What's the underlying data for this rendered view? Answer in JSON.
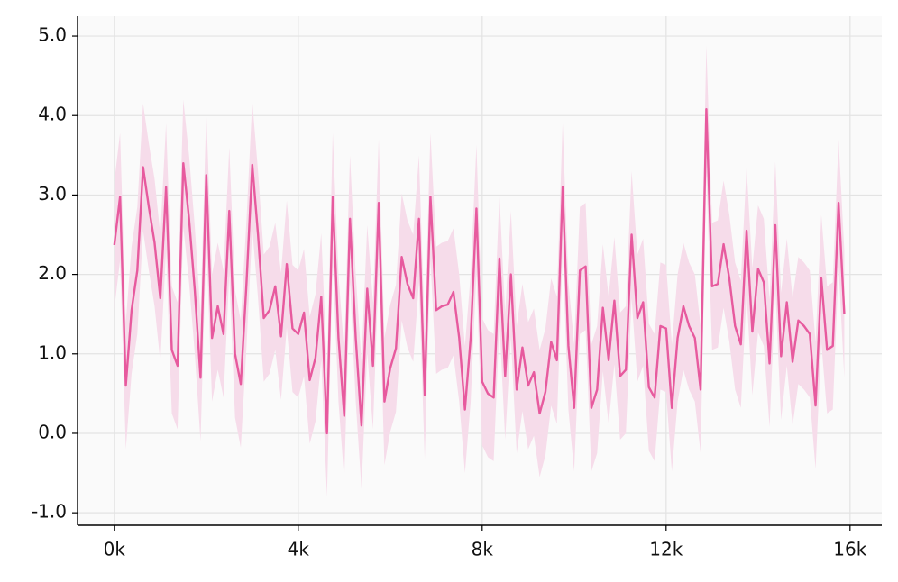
{
  "chart_data": {
    "type": "line",
    "x": [
      0,
      125,
      250,
      375,
      500,
      625,
      750,
      875,
      1000,
      1125,
      1250,
      1375,
      1500,
      1625,
      1750,
      1875,
      2000,
      2125,
      2250,
      2375,
      2500,
      2625,
      2750,
      2875,
      3000,
      3125,
      3250,
      3375,
      3500,
      3625,
      3750,
      3875,
      4000,
      4125,
      4250,
      4375,
      4500,
      4625,
      4750,
      4875,
      5000,
      5125,
      5250,
      5375,
      5500,
      5625,
      5750,
      5875,
      6000,
      6125,
      6250,
      6375,
      6500,
      6625,
      6750,
      6875,
      7000,
      7125,
      7250,
      7375,
      7500,
      7625,
      7750,
      7875,
      8000,
      8125,
      8250,
      8375,
      8500,
      8625,
      8750,
      8875,
      9000,
      9125,
      9250,
      9375,
      9500,
      9625,
      9750,
      9875,
      10000,
      10125,
      10250,
      10375,
      10500,
      10625,
      10750,
      10875,
      11000,
      11125,
      11250,
      11375,
      11500,
      11625,
      11750,
      11875,
      12000,
      12125,
      12250,
      12375,
      12500,
      12625,
      12750,
      12875,
      13000,
      13125,
      13250,
      13375,
      13500,
      13625,
      13750,
      13875,
      14000,
      14125,
      14250,
      14375,
      14500,
      14625,
      14750,
      14875,
      15000,
      15125,
      15250,
      15375,
      15500,
      15625,
      15750,
      15875
    ],
    "values": [
      2.37,
      2.98,
      0.6,
      1.55,
      2.05,
      3.35,
      2.85,
      2.4,
      1.7,
      3.1,
      1.05,
      0.85,
      3.4,
      2.7,
      1.8,
      0.7,
      3.25,
      1.2,
      1.6,
      1.25,
      2.8,
      1.0,
      0.62,
      1.9,
      3.38,
      2.5,
      1.45,
      1.55,
      1.85,
      1.22,
      2.13,
      1.32,
      1.25,
      1.52,
      0.67,
      0.95,
      1.72,
      0.0,
      2.98,
      1.2,
      0.22,
      2.7,
      1.2,
      0.1,
      1.82,
      0.85,
      2.9,
      0.4,
      0.82,
      1.07,
      2.22,
      1.88,
      1.7,
      2.7,
      0.48,
      2.98,
      1.55,
      1.6,
      1.62,
      1.78,
      1.2,
      0.3,
      1.2,
      2.83,
      0.65,
      0.5,
      0.45,
      2.2,
      0.72,
      2.0,
      0.55,
      1.08,
      0.6,
      0.77,
      0.25,
      0.52,
      1.15,
      0.92,
      3.1,
      1.1,
      0.32,
      2.05,
      2.1,
      0.32,
      0.55,
      1.58,
      0.92,
      1.67,
      0.72,
      0.8,
      2.5,
      1.45,
      1.65,
      0.58,
      0.45,
      1.35,
      1.32,
      0.32,
      1.2,
      1.6,
      1.35,
      1.2,
      0.55,
      4.08,
      1.85,
      1.88,
      2.38,
      1.95,
      1.35,
      1.12,
      2.55,
      1.28,
      2.07,
      1.9,
      0.88,
      2.62,
      0.97,
      1.65,
      0.9,
      1.42,
      1.35,
      1.25,
      0.35,
      1.95,
      1.05,
      1.1,
      2.9,
      1.5
    ],
    "upper": [
      3.17,
      3.78,
      1.4,
      2.35,
      2.85,
      4.15,
      3.65,
      3.2,
      2.5,
      3.9,
      1.85,
      1.65,
      4.2,
      3.5,
      2.6,
      1.5,
      4.05,
      2.0,
      2.4,
      2.05,
      3.6,
      1.8,
      1.42,
      2.7,
      4.18,
      3.3,
      2.25,
      2.35,
      2.65,
      2.02,
      2.93,
      2.12,
      2.05,
      2.32,
      1.47,
      1.75,
      2.52,
      0.8,
      3.78,
      2.0,
      1.02,
      3.5,
      2.0,
      0.9,
      2.62,
      1.65,
      3.7,
      1.2,
      1.62,
      1.87,
      3.02,
      2.68,
      2.5,
      3.5,
      1.28,
      3.78,
      2.35,
      2.4,
      2.42,
      2.58,
      2.0,
      1.1,
      2.0,
      3.63,
      1.45,
      1.3,
      1.25,
      3.0,
      1.52,
      2.8,
      1.35,
      1.88,
      1.4,
      1.57,
      1.05,
      1.32,
      1.95,
      1.72,
      3.9,
      1.9,
      1.12,
      2.85,
      2.9,
      1.12,
      1.35,
      2.38,
      1.72,
      2.47,
      1.52,
      1.6,
      3.3,
      2.25,
      2.45,
      1.38,
      1.25,
      2.15,
      2.12,
      1.12,
      2.0,
      2.4,
      2.15,
      2.0,
      1.35,
      4.88,
      2.65,
      2.68,
      3.18,
      2.75,
      2.15,
      1.92,
      3.35,
      2.08,
      2.87,
      2.7,
      1.68,
      3.42,
      1.77,
      2.45,
      1.7,
      2.22,
      2.15,
      2.05,
      1.15,
      2.75,
      1.85,
      1.9,
      3.7,
      2.3
    ],
    "lower": [
      1.57,
      2.18,
      -0.2,
      0.75,
      1.25,
      2.55,
      2.05,
      1.6,
      0.9,
      2.3,
      0.25,
      0.05,
      2.6,
      1.9,
      1.0,
      -0.1,
      2.45,
      0.4,
      0.8,
      0.45,
      2.0,
      0.2,
      -0.18,
      1.1,
      2.58,
      1.7,
      0.65,
      0.75,
      1.05,
      0.42,
      1.33,
      0.52,
      0.45,
      0.72,
      -0.13,
      0.15,
      0.92,
      -0.8,
      2.18,
      0.4,
      -0.58,
      1.9,
      0.4,
      -0.7,
      1.02,
      0.05,
      2.1,
      -0.4,
      0.02,
      0.27,
      1.42,
      1.08,
      0.9,
      1.9,
      -0.32,
      2.18,
      0.75,
      0.8,
      0.82,
      0.98,
      0.4,
      -0.5,
      0.4,
      2.03,
      -0.15,
      -0.3,
      -0.35,
      1.4,
      -0.08,
      1.2,
      -0.25,
      0.28,
      -0.2,
      -0.03,
      -0.55,
      -0.28,
      0.35,
      0.12,
      2.3,
      0.3,
      -0.48,
      1.25,
      1.3,
      -0.48,
      -0.25,
      0.78,
      0.12,
      0.87,
      -0.08,
      0.0,
      1.7,
      0.65,
      0.85,
      -0.22,
      -0.35,
      0.55,
      0.52,
      -0.48,
      0.4,
      0.8,
      0.55,
      0.4,
      -0.25,
      3.28,
      1.05,
      1.08,
      1.58,
      1.15,
      0.55,
      0.32,
      1.75,
      0.48,
      1.27,
      1.1,
      0.08,
      1.82,
      0.17,
      0.85,
      0.1,
      0.62,
      0.55,
      0.45,
      -0.45,
      1.15,
      0.25,
      0.3,
      2.1,
      0.7
    ],
    "color": "#e75a9e",
    "band_color": "#f6dcea",
    "xlim": [
      -800,
      16690
    ],
    "ylim": [
      -1.157,
      5.25
    ],
    "xticks": [
      {
        "value": 0,
        "label": "0k"
      },
      {
        "value": 4000,
        "label": "4k"
      },
      {
        "value": 8000,
        "label": "8k"
      },
      {
        "value": 12000,
        "label": "12k"
      },
      {
        "value": 16000,
        "label": "16k"
      }
    ],
    "yticks": [
      {
        "value": -1,
        "label": "-1.0"
      },
      {
        "value": 0,
        "label": "0.0"
      },
      {
        "value": 1,
        "label": "1.0"
      },
      {
        "value": 2,
        "label": "2.0"
      },
      {
        "value": 3,
        "label": "3.0"
      },
      {
        "value": 4,
        "label": "4.0"
      },
      {
        "value": 5,
        "label": "5.0"
      }
    ],
    "grid": true
  }
}
